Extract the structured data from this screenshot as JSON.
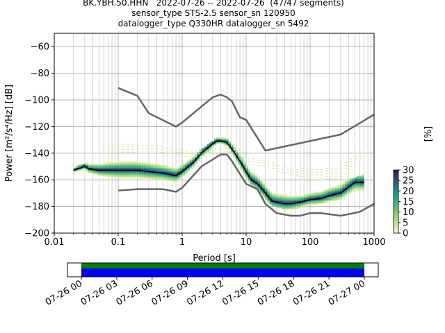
{
  "title_lines": [
    "BK.YBH.50.HHN   2022-07-26 -- 2022-07-26  (47/47 segments)",
    "sensor_type STS-2.5 sensor_sn 120950",
    "datalogger_type Q330HR datalogger_sn 5492"
  ],
  "chart_data": [
    {
      "type": "heatmap",
      "xlabel": "Period [s]",
      "ylabel": "Power [m²/s⁴/Hz] [dB]",
      "xscale": "log",
      "xlim": [
        0.01,
        1000
      ],
      "ylim": [
        -200,
        -50
      ],
      "x_tick_labels": [
        "0.01",
        "0.1",
        "1",
        "10",
        "100",
        "1000"
      ],
      "y_ticks": [
        -200,
        -180,
        -160,
        -140,
        -120,
        -100,
        -80,
        -60
      ],
      "grid": true,
      "colorbar": {
        "label": "[%]",
        "ticks": [
          0,
          5,
          10,
          15,
          20,
          25,
          30
        ],
        "range": [
          0,
          30
        ]
      },
      "median_curve": {
        "x": [
          0.02,
          0.03,
          0.035,
          0.05,
          0.1,
          0.2,
          0.5,
          0.8,
          1.0,
          1.5,
          2.0,
          3.0,
          3.5,
          4.0,
          5.0,
          6.0,
          8.0,
          10,
          12,
          15,
          20,
          25,
          30,
          40,
          50,
          70,
          100,
          150,
          200,
          300,
          500,
          700
        ],
        "y": [
          -153,
          -150,
          -152,
          -153,
          -153,
          -153,
          -155,
          -157,
          -154,
          -147,
          -140,
          -133,
          -131,
          -131,
          -132,
          -137,
          -146,
          -154,
          -160,
          -163,
          -170,
          -176,
          -177,
          -178,
          -178,
          -177,
          -175,
          -174,
          -172,
          -170,
          -162,
          -162
        ]
      },
      "nhnm": {
        "x": [
          0.1,
          0.2,
          0.3,
          0.8,
          1.0,
          3.0,
          4.0,
          5.0,
          6.0,
          8.0,
          10,
          20,
          300,
          1000
        ],
        "y": [
          -91,
          -97,
          -110,
          -120,
          -117,
          -98,
          -96,
          -98,
          -101,
          -113,
          -115,
          -138,
          -126,
          -111
        ]
      },
      "nlnm": {
        "x": [
          0.1,
          0.2,
          0.5,
          0.8,
          1.0,
          2.0,
          4.0,
          5.0,
          6.0,
          10,
          15,
          20,
          30,
          50,
          70,
          100,
          150,
          300,
          600,
          1000
        ],
        "y": [
          -168,
          -167,
          -167,
          -169,
          -166,
          -150,
          -141,
          -141,
          -146,
          -163,
          -167,
          -178,
          -185,
          -187,
          -187,
          -185,
          -185,
          -187,
          -184,
          -178
        ]
      },
      "density_band": {
        "x": [
          0.02,
          0.05,
          0.1,
          0.3,
          0.8,
          1.5,
          2.5,
          4.0,
          6.0,
          10,
          20,
          40,
          80,
          150,
          300,
          700
        ],
        "y_low": [
          -154,
          -158,
          -160,
          -162,
          -162,
          -152,
          -144,
          -133,
          -140,
          -160,
          -177,
          -182,
          -182,
          -181,
          -177,
          -172
        ],
        "y_high": [
          -150,
          -148,
          -146,
          -148,
          -150,
          -143,
          -135,
          -128,
          -131,
          -148,
          -164,
          -168,
          -172,
          -170,
          -164,
          -157
        ]
      },
      "scatter_band": {
        "x": [
          0.05,
          0.1,
          0.3,
          1.0,
          2.0,
          5.0,
          10,
          20,
          50,
          100,
          300,
          700
        ],
        "y_low": [
          -141,
          -140,
          -138,
          -142,
          -143,
          -138,
          -148,
          -150,
          -156,
          -158,
          -160,
          -142
        ],
        "y_high": [
          -136,
          -134,
          -133,
          -137,
          -139,
          -134,
          -143,
          -145,
          -151,
          -152,
          -150,
          -136
        ]
      }
    },
    {
      "type": "timeline",
      "x_tick_labels": [
        "07-26 00",
        "07-26 03",
        "07-26 06",
        "07-26 09",
        "07-26 12",
        "07-26 15",
        "07-26 18",
        "07-26 21",
        "07-27 00"
      ],
      "series": [
        {
          "name": "",
          "color": "#008000"
        },
        {
          "name": "",
          "color": "#0000ff"
        }
      ]
    }
  ]
}
